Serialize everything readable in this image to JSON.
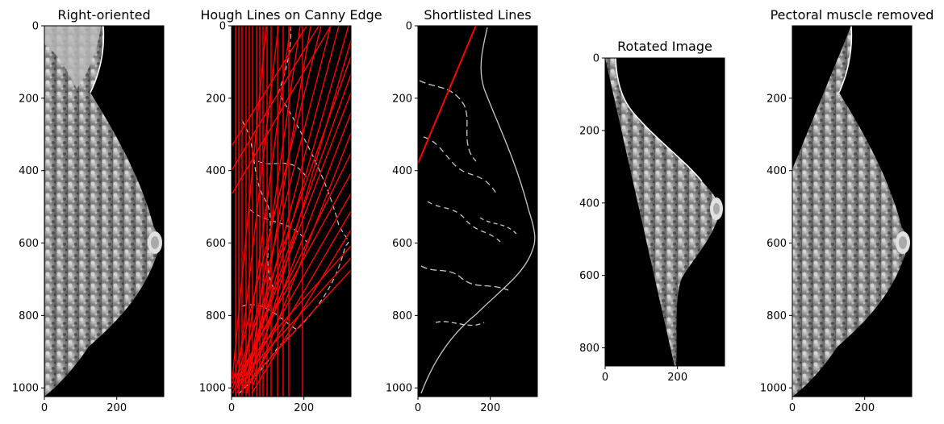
{
  "chart_data": [
    {
      "type": "image",
      "title": "Right-oriented",
      "image": "mammogram (right-oriented)",
      "xticks": [
        0,
        200
      ],
      "yticks": [
        0,
        200,
        400,
        600,
        800,
        1000
      ],
      "xlim": [
        0,
        330
      ],
      "ylim": [
        1024,
        0
      ]
    },
    {
      "type": "image",
      "title": "Hough Lines on Canny Edge",
      "image": "canny edges with hough lines",
      "xticks": [
        0,
        200
      ],
      "yticks": [
        0,
        200,
        400,
        600,
        800,
        1000
      ],
      "xlim": [
        0,
        330
      ],
      "ylim": [
        1024,
        0
      ],
      "line_color": "#ff0000"
    },
    {
      "type": "image",
      "title": "Shortlisted Lines",
      "image": "canny edges with shortlisted line",
      "xticks": [
        0,
        200
      ],
      "yticks": [
        0,
        200,
        400,
        600,
        800,
        1000
      ],
      "xlim": [
        0,
        330
      ],
      "ylim": [
        1024,
        0
      ],
      "line_color": "#ff0000",
      "shortlisted_line": {
        "x": [
          0,
          160
        ],
        "y": [
          380,
          0
        ]
      }
    },
    {
      "type": "image",
      "title": "Rotated Image",
      "image": "rotated mammogram",
      "xticks": [
        0,
        200
      ],
      "yticks": [
        0,
        200,
        400,
        600,
        800
      ],
      "xlim": [
        0,
        330
      ],
      "ylim": [
        850,
        0
      ]
    },
    {
      "type": "image",
      "title": "Pectoral muscle removed",
      "image": "mammogram with pectoral muscle removed",
      "xticks": [
        0,
        200
      ],
      "yticks": [
        200,
        400,
        600,
        800,
        1000
      ],
      "xlim": [
        0,
        330
      ],
      "ylim": [
        1024,
        0
      ]
    }
  ]
}
